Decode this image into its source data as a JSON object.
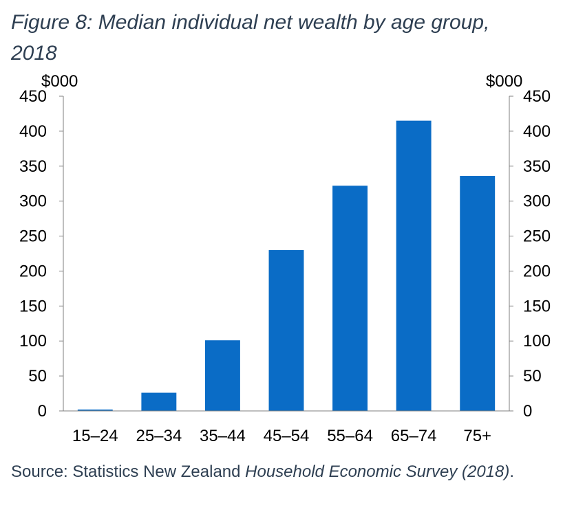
{
  "title": {
    "line1": "Figure 8: Median individual net wealth by age group,",
    "line2": "2018"
  },
  "source": {
    "prefix": "Source: Statistics New Zealand ",
    "publication": "Household Economic Survey",
    "year": "(2018)",
    "suffix": "."
  },
  "colors": {
    "bar": "#0a6cc6",
    "axis": "#7f7f7f",
    "text": "#000000",
    "title": "#2e3f52"
  },
  "chart_data": {
    "type": "bar",
    "title": "Figure 8: Median individual net wealth by age group, 2018",
    "xlabel": "",
    "ylabel": "$000",
    "ylabel_right": "$000",
    "categories": [
      "15–24",
      "25–34",
      "35–44",
      "45–54",
      "55–64",
      "65–74",
      "75+"
    ],
    "values": [
      2,
      26,
      101,
      230,
      322,
      415,
      336
    ],
    "ylim": [
      0,
      450
    ],
    "yticks": [
      0,
      50,
      100,
      150,
      200,
      250,
      300,
      350,
      400,
      450
    ],
    "grid": false,
    "legend": "none",
    "secondary_axis": true
  }
}
